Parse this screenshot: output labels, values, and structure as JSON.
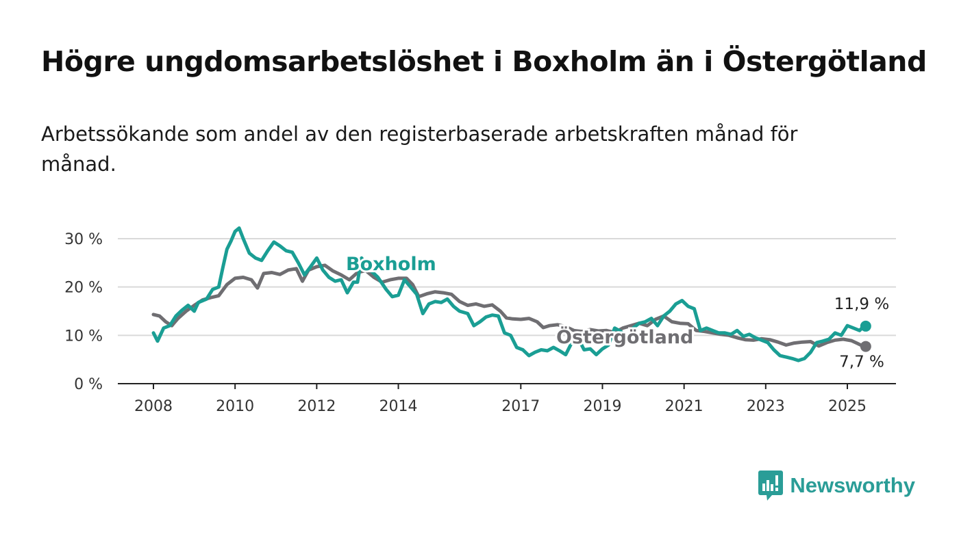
{
  "title": "Högre ungdomsarbetslöshet i Boxholm än i Östergötland",
  "subtitle": "Arbetssökande som andel av den registerbaserade arbetskraften månad för månad.",
  "brand": {
    "name": "Newsworthy",
    "icon": "newsworthy-logo-icon",
    "color": "#2a9d97"
  },
  "chart_data": {
    "type": "line",
    "x_ticks": [
      2008,
      2010,
      2012,
      2014,
      2017,
      2019,
      2021,
      2023,
      2025
    ],
    "y_ticks": [
      {
        "value": 0,
        "label": "0 %"
      },
      {
        "value": 10,
        "label": "10 %"
      },
      {
        "value": 20,
        "label": "20 %"
      },
      {
        "value": 30,
        "label": "30 %"
      }
    ],
    "ylim": [
      0,
      30
    ],
    "xlim": [
      2007.2,
      2026.2
    ],
    "grid": true,
    "series": [
      {
        "name": "Östergötland",
        "color": "#6f6e72",
        "end_label": "7,7 %",
        "points": [
          [
            2008.0,
            14.3
          ],
          [
            2008.15,
            14.0
          ],
          [
            2008.3,
            12.8
          ],
          [
            2008.45,
            12.0
          ],
          [
            2008.6,
            13.5
          ],
          [
            2008.8,
            15.0
          ],
          [
            2009.0,
            16.2
          ],
          [
            2009.2,
            17.3
          ],
          [
            2009.4,
            17.8
          ],
          [
            2009.6,
            18.2
          ],
          [
            2009.8,
            20.5
          ],
          [
            2010.0,
            21.8
          ],
          [
            2010.2,
            22.0
          ],
          [
            2010.4,
            21.5
          ],
          [
            2010.55,
            19.8
          ],
          [
            2010.7,
            22.8
          ],
          [
            2010.9,
            23.0
          ],
          [
            2011.1,
            22.6
          ],
          [
            2011.3,
            23.5
          ],
          [
            2011.5,
            23.8
          ],
          [
            2011.65,
            21.2
          ],
          [
            2011.8,
            23.5
          ],
          [
            2012.0,
            24.2
          ],
          [
            2012.2,
            24.5
          ],
          [
            2012.4,
            23.3
          ],
          [
            2012.6,
            22.5
          ],
          [
            2012.8,
            21.5
          ],
          [
            2013.0,
            23.0
          ],
          [
            2013.2,
            23.4
          ],
          [
            2013.4,
            22.0
          ],
          [
            2013.6,
            21.0
          ],
          [
            2013.8,
            21.5
          ],
          [
            2014.0,
            21.8
          ],
          [
            2014.2,
            21.8
          ],
          [
            2014.35,
            20.5
          ],
          [
            2014.5,
            18.0
          ],
          [
            2014.7,
            18.6
          ],
          [
            2014.9,
            19.0
          ],
          [
            2015.1,
            18.8
          ],
          [
            2015.3,
            18.5
          ],
          [
            2015.5,
            17.0
          ],
          [
            2015.7,
            16.2
          ],
          [
            2015.9,
            16.5
          ],
          [
            2016.1,
            16.0
          ],
          [
            2016.3,
            16.3
          ],
          [
            2016.5,
            15.0
          ],
          [
            2016.65,
            13.6
          ],
          [
            2016.8,
            13.4
          ],
          [
            2017.0,
            13.3
          ],
          [
            2017.2,
            13.5
          ],
          [
            2017.4,
            12.8
          ],
          [
            2017.55,
            11.6
          ],
          [
            2017.7,
            12.0
          ],
          [
            2017.9,
            12.2
          ],
          [
            2018.1,
            11.8
          ],
          [
            2018.3,
            11.0
          ],
          [
            2018.5,
            10.8
          ],
          [
            2018.7,
            11.2
          ],
          [
            2018.9,
            10.9
          ],
          [
            2019.1,
            11.0
          ],
          [
            2019.3,
            10.6
          ],
          [
            2019.5,
            11.5
          ],
          [
            2019.7,
            12.0
          ],
          [
            2019.9,
            12.5
          ],
          [
            2020.1,
            12.0
          ],
          [
            2020.3,
            13.3
          ],
          [
            2020.5,
            14.0
          ],
          [
            2020.7,
            12.8
          ],
          [
            2020.9,
            12.5
          ],
          [
            2021.1,
            12.4
          ],
          [
            2021.3,
            11.0
          ],
          [
            2021.5,
            10.8
          ],
          [
            2021.7,
            10.5
          ],
          [
            2021.9,
            10.2
          ],
          [
            2022.1,
            10.0
          ],
          [
            2022.3,
            9.5
          ],
          [
            2022.5,
            9.1
          ],
          [
            2022.7,
            9.0
          ],
          [
            2022.9,
            9.3
          ],
          [
            2023.1,
            9.1
          ],
          [
            2023.3,
            8.6
          ],
          [
            2023.5,
            8.0
          ],
          [
            2023.7,
            8.4
          ],
          [
            2023.9,
            8.6
          ],
          [
            2024.1,
            8.7
          ],
          [
            2024.3,
            7.8
          ],
          [
            2024.5,
            8.5
          ],
          [
            2024.7,
            9.0
          ],
          [
            2024.9,
            9.2
          ],
          [
            2025.1,
            8.9
          ],
          [
            2025.25,
            8.3
          ],
          [
            2025.4,
            7.7
          ]
        ]
      },
      {
        "name": "Boxholm",
        "color": "#1a9e94",
        "end_label": "11,9 %",
        "points": [
          [
            2008.0,
            10.5
          ],
          [
            2008.1,
            8.8
          ],
          [
            2008.25,
            11.5
          ],
          [
            2008.4,
            12.0
          ],
          [
            2008.55,
            14.0
          ],
          [
            2008.7,
            15.2
          ],
          [
            2008.85,
            16.2
          ],
          [
            2009.0,
            15.0
          ],
          [
            2009.1,
            16.8
          ],
          [
            2009.3,
            17.5
          ],
          [
            2009.45,
            19.5
          ],
          [
            2009.6,
            20.0
          ],
          [
            2009.7,
            24.0
          ],
          [
            2009.8,
            27.8
          ],
          [
            2009.9,
            29.5
          ],
          [
            2010.0,
            31.5
          ],
          [
            2010.1,
            32.2
          ],
          [
            2010.2,
            30.0
          ],
          [
            2010.35,
            27.0
          ],
          [
            2010.5,
            26.0
          ],
          [
            2010.65,
            25.5
          ],
          [
            2010.8,
            27.5
          ],
          [
            2010.95,
            29.3
          ],
          [
            2011.1,
            28.5
          ],
          [
            2011.25,
            27.5
          ],
          [
            2011.4,
            27.2
          ],
          [
            2011.55,
            25.0
          ],
          [
            2011.7,
            22.5
          ],
          [
            2011.85,
            24.2
          ],
          [
            2012.0,
            26.0
          ],
          [
            2012.15,
            23.5
          ],
          [
            2012.3,
            22.0
          ],
          [
            2012.45,
            21.2
          ],
          [
            2012.6,
            21.5
          ],
          [
            2012.75,
            18.8
          ],
          [
            2012.9,
            21.0
          ],
          [
            2013.0,
            21.0
          ],
          [
            2013.1,
            26.0
          ],
          [
            2013.25,
            24.0
          ],
          [
            2013.5,
            22.0
          ],
          [
            2013.7,
            19.5
          ],
          [
            2013.85,
            18.0
          ],
          [
            2014.0,
            18.3
          ],
          [
            2014.15,
            21.5
          ],
          [
            2014.3,
            20.0
          ],
          [
            2014.45,
            18.5
          ],
          [
            2014.6,
            14.5
          ],
          [
            2014.75,
            16.5
          ],
          [
            2014.9,
            17.0
          ],
          [
            2015.05,
            16.8
          ],
          [
            2015.2,
            17.5
          ],
          [
            2015.35,
            16.0
          ],
          [
            2015.5,
            15.0
          ],
          [
            2015.7,
            14.5
          ],
          [
            2015.85,
            12.0
          ],
          [
            2016.0,
            12.8
          ],
          [
            2016.15,
            13.8
          ],
          [
            2016.3,
            14.2
          ],
          [
            2016.45,
            14.0
          ],
          [
            2016.6,
            10.5
          ],
          [
            2016.75,
            10.0
          ],
          [
            2016.9,
            7.5
          ],
          [
            2017.05,
            7.0
          ],
          [
            2017.2,
            5.8
          ],
          [
            2017.35,
            6.5
          ],
          [
            2017.5,
            7.0
          ],
          [
            2017.65,
            6.8
          ],
          [
            2017.8,
            7.5
          ],
          [
            2017.95,
            6.8
          ],
          [
            2018.1,
            6.0
          ],
          [
            2018.25,
            8.5
          ],
          [
            2018.4,
            9.5
          ],
          [
            2018.55,
            7.0
          ],
          [
            2018.7,
            7.2
          ],
          [
            2018.85,
            6.0
          ],
          [
            2019.0,
            7.2
          ],
          [
            2019.15,
            8.0
          ],
          [
            2019.3,
            11.5
          ],
          [
            2019.45,
            10.8
          ],
          [
            2019.6,
            9.5
          ],
          [
            2019.75,
            11.5
          ],
          [
            2019.9,
            12.5
          ],
          [
            2020.05,
            12.8
          ],
          [
            2020.2,
            13.5
          ],
          [
            2020.35,
            12.0
          ],
          [
            2020.5,
            14.0
          ],
          [
            2020.65,
            15.0
          ],
          [
            2020.8,
            16.5
          ],
          [
            2020.95,
            17.2
          ],
          [
            2021.1,
            16.0
          ],
          [
            2021.25,
            15.5
          ],
          [
            2021.4,
            11.0
          ],
          [
            2021.55,
            11.5
          ],
          [
            2021.7,
            11.0
          ],
          [
            2021.85,
            10.5
          ],
          [
            2022.0,
            10.5
          ],
          [
            2022.15,
            10.2
          ],
          [
            2022.3,
            11.0
          ],
          [
            2022.45,
            9.8
          ],
          [
            2022.6,
            10.2
          ],
          [
            2022.75,
            9.5
          ],
          [
            2022.9,
            9.0
          ],
          [
            2023.05,
            8.5
          ],
          [
            2023.2,
            7.0
          ],
          [
            2023.35,
            5.8
          ],
          [
            2023.5,
            5.5
          ],
          [
            2023.65,
            5.2
          ],
          [
            2023.8,
            4.8
          ],
          [
            2023.95,
            5.2
          ],
          [
            2024.1,
            6.5
          ],
          [
            2024.25,
            8.5
          ],
          [
            2024.4,
            8.8
          ],
          [
            2024.55,
            9.2
          ],
          [
            2024.7,
            10.5
          ],
          [
            2024.85,
            10.0
          ],
          [
            2025.0,
            12.0
          ],
          [
            2025.15,
            11.5
          ],
          [
            2025.3,
            11.0
          ],
          [
            2025.4,
            11.9
          ]
        ]
      }
    ]
  }
}
